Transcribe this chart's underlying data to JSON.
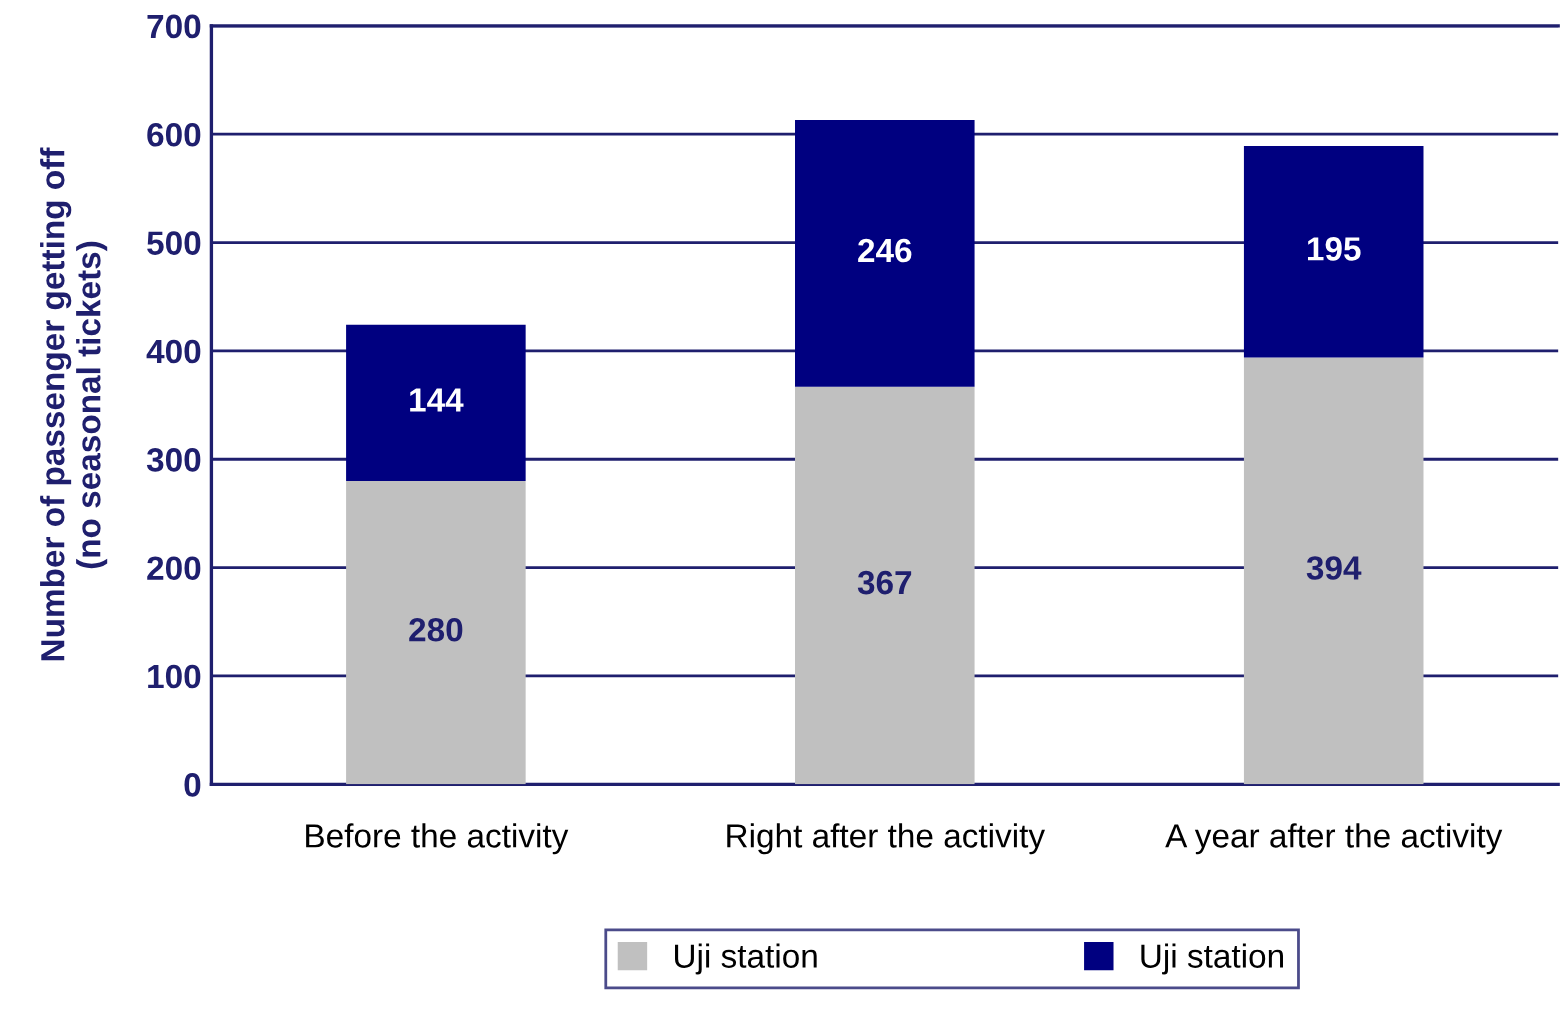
{
  "chart_data": {
    "type": "bar",
    "stacked": true,
    "ylabel": "Number of passenger getting off\n(no seasonal tickets)",
    "categories": [
      "Before the activity",
      "Right after the activity",
      "A year after the activity"
    ],
    "series": [
      {
        "name": "Uji station",
        "color": "#c0c0c0",
        "values": [
          280,
          367,
          394
        ]
      },
      {
        "name": "Uji station",
        "color": "#000080",
        "values": [
          144,
          246,
          195
        ]
      }
    ],
    "ylim": [
      0,
      700
    ],
    "yticks": [
      0,
      100,
      200,
      300,
      400,
      500,
      600,
      700
    ],
    "grid": "y",
    "legend": "bottom",
    "data_labels": true
  }
}
